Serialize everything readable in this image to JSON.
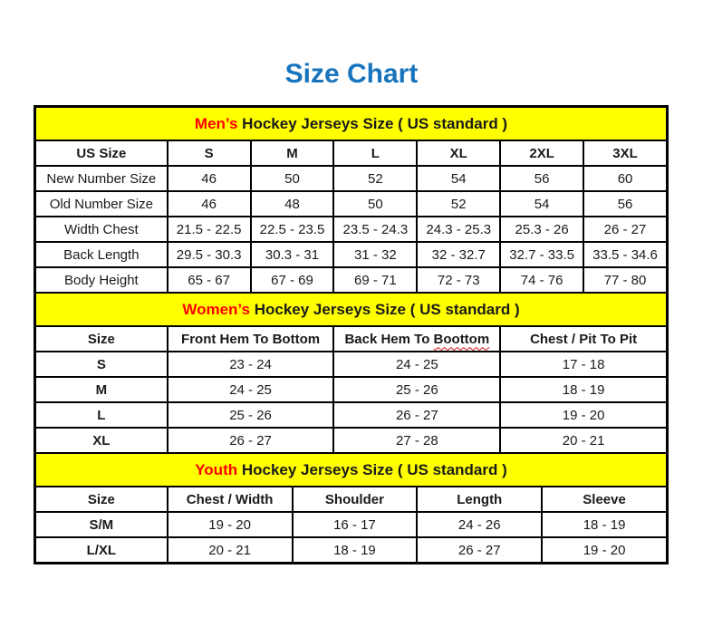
{
  "page_title": "Size Chart",
  "colors": {
    "title_blue": "#1874bc",
    "band_yellow": "#ffff00",
    "accent_red": "#ff0000",
    "border_black": "#000000",
    "squiggle_red": "#cc1111"
  },
  "mens": {
    "title_highlight": "Men’s",
    "title_rest": " Hockey Jerseys Size ( US standard )",
    "columns": [
      "US Size",
      "S",
      "M",
      "L",
      "XL",
      "2XL",
      "3XL"
    ],
    "rows": [
      {
        "label": "New Number Size",
        "values": [
          "46",
          "50",
          "52",
          "54",
          "56",
          "60"
        ]
      },
      {
        "label": "Old Number Size",
        "values": [
          "46",
          "48",
          "50",
          "52",
          "54",
          "56"
        ]
      },
      {
        "label": "Width Chest",
        "values": [
          "21.5 - 22.5",
          "22.5 - 23.5",
          "23.5 - 24.3",
          "24.3 - 25.3",
          "25.3 - 26",
          "26 - 27"
        ]
      },
      {
        "label": "Back Length",
        "values": [
          "29.5 - 30.3",
          "30.3 - 31",
          "31 - 32",
          "32 - 32.7",
          "32.7 - 33.5",
          "33.5 - 34.6"
        ]
      },
      {
        "label": "Body Height",
        "values": [
          "65 - 67",
          "67 - 69",
          "69 - 71",
          "72 - 73",
          "74 - 76",
          "77 - 80"
        ]
      }
    ]
  },
  "womens": {
    "title_highlight": "Women’s",
    "title_rest": " Hockey Jerseys Size ( US standard )",
    "columns": [
      "Size",
      "Front Hem To Bottom",
      {
        "prefix": "Back Hem To ",
        "underlined": "Boottom"
      },
      "Chest / Pit To Pit"
    ],
    "rows": [
      {
        "label": "S",
        "values": [
          "23 - 24",
          "24 - 25",
          "17 - 18"
        ]
      },
      {
        "label": "M",
        "values": [
          "24 - 25",
          "25 - 26",
          "18 - 19"
        ]
      },
      {
        "label": "L",
        "values": [
          "25 - 26",
          "26 - 27",
          "19 - 20"
        ]
      },
      {
        "label": "XL",
        "values": [
          "26 - 27",
          "27 - 28",
          "20 - 21"
        ]
      }
    ]
  },
  "youth": {
    "title_highlight": "Youth",
    "title_rest": " Hockey Jerseys Size ( US standard )",
    "columns": [
      "Size",
      "Chest / Width",
      "Shoulder",
      "Length",
      "Sleeve"
    ],
    "rows": [
      {
        "label": "S/M",
        "values": [
          "19 - 20",
          "16 - 17",
          "24 - 26",
          "18 - 19"
        ]
      },
      {
        "label": "L/XL",
        "values": [
          "20 - 21",
          "18 - 19",
          "26 - 27",
          "19 - 20"
        ]
      }
    ]
  }
}
